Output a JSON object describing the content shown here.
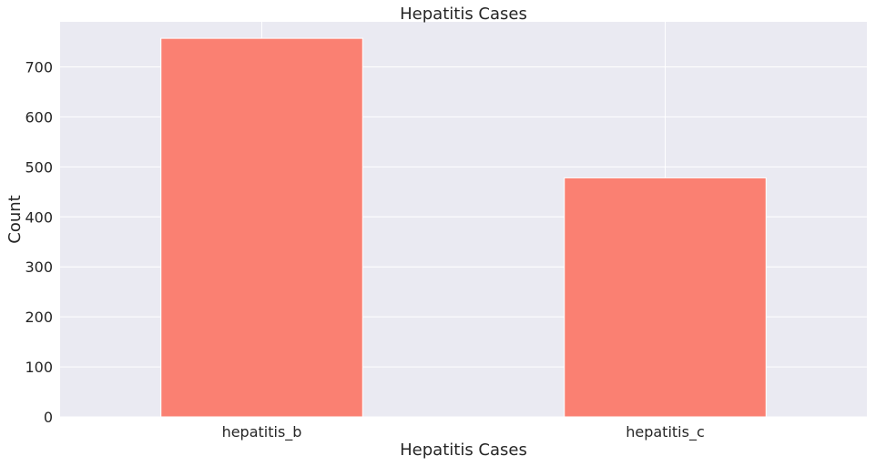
{
  "chart_data": {
    "type": "bar",
    "title": "Hepatitis Cases",
    "xlabel": "Hepatitis Cases",
    "ylabel": "Count",
    "categories": [
      "hepatitis_b",
      "hepatitis_c"
    ],
    "values": [
      757,
      478
    ],
    "ylim": [
      0,
      790
    ],
    "yticks": [
      0,
      100,
      200,
      300,
      400,
      500,
      600,
      700
    ],
    "grid": true,
    "colors": {
      "bar": "#fa8072",
      "background": "#eaeaf2",
      "grid": "#ffffff",
      "text": "#262626"
    }
  }
}
